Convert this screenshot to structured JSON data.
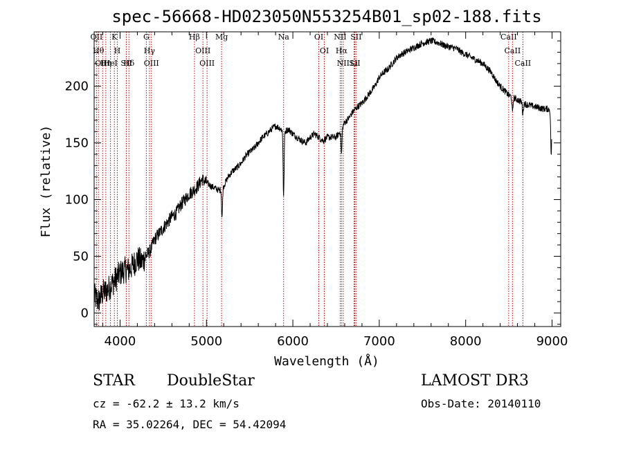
{
  "chart_data": {
    "type": "line",
    "title": "spec-56668-HD023050N553254B01_sp02-188.fits",
    "xlabel": "Wavelength (Å)",
    "ylabel": "Flux (relative)",
    "xlim": [
      3700,
      9100
    ],
    "ylim": [
      -12,
      248
    ],
    "xticks": [
      4000,
      5000,
      6000,
      7000,
      8000,
      9000
    ],
    "yticks": [
      0,
      50,
      100,
      150,
      200
    ],
    "grid": false,
    "series": [
      {
        "name": "flux",
        "x": [
          3700,
          3750,
          3800,
          3850,
          3900,
          3950,
          4000,
          4050,
          4100,
          4150,
          4200,
          4250,
          4300,
          4350,
          4400,
          4450,
          4500,
          4550,
          4600,
          4650,
          4700,
          4750,
          4800,
          4850,
          4900,
          4950,
          5000,
          5050,
          5100,
          5150,
          5200,
          5250,
          5300,
          5350,
          5400,
          5450,
          5500,
          5550,
          5600,
          5650,
          5700,
          5750,
          5800,
          5850,
          5900,
          5950,
          6000,
          6050,
          6100,
          6150,
          6200,
          6250,
          6300,
          6350,
          6400,
          6450,
          6500,
          6550,
          6600,
          6650,
          6700,
          6750,
          6800,
          6850,
          6900,
          6950,
          7000,
          7050,
          7100,
          7150,
          7200,
          7250,
          7300,
          7350,
          7400,
          7450,
          7500,
          7550,
          7600,
          7650,
          7700,
          7750,
          7800,
          7850,
          7900,
          7950,
          8000,
          8050,
          8100,
          8150,
          8200,
          8250,
          8300,
          8350,
          8400,
          8450,
          8500,
          8550,
          8600,
          8650,
          8700,
          8750,
          8800,
          8850,
          8900,
          8950,
          8990
        ],
        "values": [
          15,
          10,
          18,
          20,
          25,
          30,
          35,
          38,
          38,
          42,
          48,
          45,
          50,
          55,
          65,
          70,
          75,
          80,
          85,
          88,
          95,
          100,
          105,
          108,
          112,
          118,
          115,
          112,
          110,
          108,
          112,
          120,
          125,
          128,
          132,
          138,
          142,
          145,
          150,
          155,
          158,
          162,
          165,
          163,
          160,
          162,
          158,
          155,
          152,
          150,
          155,
          158,
          155,
          152,
          155,
          155,
          155,
          160,
          168,
          172,
          178,
          182,
          185,
          190,
          195,
          200,
          208,
          212,
          215,
          220,
          225,
          228,
          230,
          232,
          234,
          236,
          238,
          239,
          240,
          239,
          238,
          236,
          235,
          234,
          233,
          230,
          228,
          226,
          224,
          222,
          220,
          216,
          212,
          205,
          200,
          196,
          192,
          190,
          188,
          186,
          184,
          183,
          182,
          181,
          180,
          180,
          179
        ]
      }
    ],
    "absorption_features": [
      {
        "x": 5180,
        "depth": 26
      },
      {
        "x": 5893,
        "depth": 58
      },
      {
        "x": 6563,
        "depth": 22
      },
      {
        "x": 8542,
        "depth": 14
      },
      {
        "x": 8662,
        "depth": 10
      },
      {
        "x": 8990,
        "depth": 40
      }
    ],
    "line_markers": [
      {
        "x": 3727,
        "label": "OII"
      },
      {
        "x": 3750,
        "label": "Hθ"
      },
      {
        "x": 3798,
        "label": "OIII"
      },
      {
        "x": 3835,
        "label": "Hη"
      },
      {
        "x": 3889,
        "label": "HeI"
      },
      {
        "x": 3934,
        "label": "K"
      },
      {
        "x": 3968,
        "label": "H"
      },
      {
        "x": 4072,
        "label": "SII"
      },
      {
        "x": 4102,
        "label": "Hδ"
      },
      {
        "x": 4304,
        "label": "G"
      },
      {
        "x": 4340,
        "label": "Hγ"
      },
      {
        "x": 4363,
        "label": "OIII"
      },
      {
        "x": 4861,
        "label": "Hβ"
      },
      {
        "x": 4959,
        "label": "OIII"
      },
      {
        "x": 5007,
        "label": "OIII"
      },
      {
        "x": 5175,
        "label": "Mg"
      },
      {
        "x": 5893,
        "label": "Na"
      },
      {
        "x": 6300,
        "label": "OI"
      },
      {
        "x": 6364,
        "label": "OI"
      },
      {
        "x": 6548,
        "label": "NII"
      },
      {
        "x": 6563,
        "label": "Hα"
      },
      {
        "x": 6583,
        "label": "NII"
      },
      {
        "x": 6708,
        "label": "Li"
      },
      {
        "x": 6716,
        "label": "SII"
      },
      {
        "x": 6731,
        "label": "SII"
      },
      {
        "x": 8498,
        "label": "CaII"
      },
      {
        "x": 8542,
        "label": "CaII"
      },
      {
        "x": 8662,
        "label": "CaII"
      }
    ]
  },
  "footer": {
    "object_class": "STAR",
    "subclass": "DoubleStar",
    "survey": "LAMOST DR3",
    "redshift": "cz = -62.2 ± 13.2 km/s",
    "obs_date": "Obs-Date: 20140110",
    "coords": "RA =  35.02264, DEC =  54.42094"
  }
}
